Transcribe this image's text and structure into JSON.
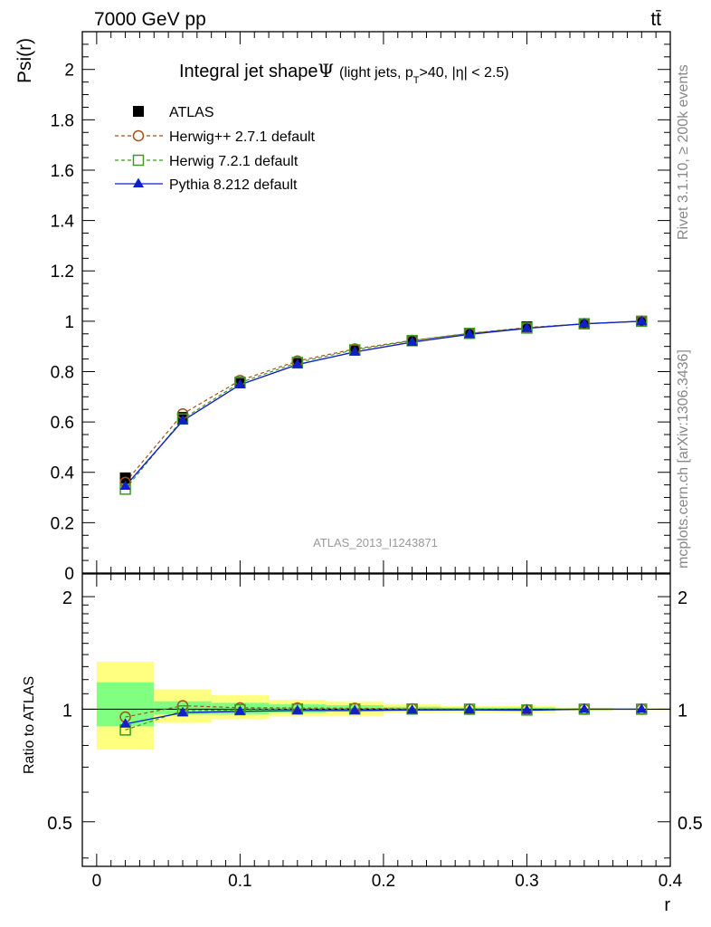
{
  "header": {
    "left_label": "7000 GeV pp",
    "right_label": "tt̄"
  },
  "side_labels": {
    "rivet": "Rivet 3.1.10, ≥ 200k events",
    "source": "mcplots.cern.ch [arXiv:1306.3436]"
  },
  "chart_data": [
    {
      "type": "line",
      "panel": "main",
      "title_main": "Integral jet shape",
      "title_symbol": "Ψ",
      "title_detail": "(light jets, p",
      "title_sub": "T",
      "title_tail": ">40, |η| < 2.5)",
      "ylabel": "Psi(r)",
      "xlabel": "r",
      "watermark": "ATLAS_2013_I1243871",
      "xlim": [
        -0.01,
        0.4
      ],
      "ylim": [
        0,
        2.15
      ],
      "yticks": [
        0,
        0.2,
        0.4,
        0.6,
        0.8,
        1,
        1.2,
        1.4,
        1.6,
        1.8,
        2
      ],
      "ytick_labels": [
        "0",
        "0.2",
        "0.4",
        "0.6",
        "0.8",
        "1",
        "1.2",
        "1.4",
        "1.6",
        "1.8",
        "2"
      ],
      "xticks": [
        0,
        0.1,
        0.2,
        0.3,
        0.4
      ],
      "xtick_labels": [
        "0",
        "0.1",
        "0.2",
        "0.3",
        "0.4"
      ],
      "x": [
        0.02,
        0.06,
        0.1,
        0.14,
        0.18,
        0.22,
        0.26,
        0.3,
        0.34,
        0.38
      ],
      "series": [
        {
          "name": "ATLAS",
          "color": "#000000",
          "marker": "square-filled",
          "line": "none",
          "values": [
            0.378,
            0.618,
            0.758,
            0.835,
            0.885,
            0.922,
            0.952,
            0.978,
            0.99,
            1.0
          ]
        },
        {
          "name": "Herwig++ 2.7.1 default",
          "color": "#a0521a",
          "marker": "circle-open",
          "line": "dashed",
          "values": [
            0.36,
            0.632,
            0.765,
            0.842,
            0.89,
            0.924,
            0.952,
            0.975,
            0.99,
            1.0
          ]
        },
        {
          "name": "Herwig 7.2.1 default",
          "color": "#3f9a1f",
          "marker": "square-open",
          "line": "dashed",
          "values": [
            0.333,
            0.612,
            0.756,
            0.836,
            0.886,
            0.923,
            0.952,
            0.973,
            0.99,
            1.0
          ]
        },
        {
          "name": "Pythia 8.212 default",
          "color": "#0f20c8",
          "marker": "triangle-filled",
          "line": "solid",
          "values": [
            0.345,
            0.605,
            0.748,
            0.828,
            0.878,
            0.917,
            0.948,
            0.972,
            0.99,
            1.0
          ]
        }
      ]
    },
    {
      "type": "line",
      "panel": "ratio",
      "ylabel": "Ratio to ATLAS",
      "xlabel": "r",
      "xlim": [
        -0.01,
        0.4
      ],
      "ylim": [
        0.38,
        2.3
      ],
      "yticks": [
        0.5,
        1,
        2
      ],
      "ytick_labels": [
        "0.5",
        "1",
        "2"
      ],
      "xticks": [
        0,
        0.1,
        0.2,
        0.3,
        0.4
      ],
      "xtick_labels": [
        "0",
        "0.1",
        "0.2",
        "0.3",
        "0.4"
      ],
      "x": [
        0.02,
        0.06,
        0.1,
        0.14,
        0.18,
        0.22,
        0.26,
        0.3,
        0.34,
        0.38
      ],
      "bin_edges": [
        0,
        0.04,
        0.08,
        0.12,
        0.16,
        0.2,
        0.24,
        0.28,
        0.32,
        0.36,
        0.4
      ],
      "band_yellow": [
        [
          0.78,
          1.34
        ],
        [
          0.92,
          1.13
        ],
        [
          0.94,
          1.09
        ],
        [
          0.96,
          1.06
        ],
        [
          0.96,
          1.05
        ],
        [
          0.98,
          1.03
        ],
        [
          0.98,
          1.02
        ],
        [
          0.98,
          1.02
        ],
        [
          0.99,
          1.01
        ],
        [
          0.995,
          1.005
        ]
      ],
      "band_green": [
        [
          0.9,
          1.18
        ],
        [
          0.97,
          1.05
        ],
        [
          0.97,
          1.04
        ],
        [
          0.98,
          1.03
        ],
        [
          0.985,
          1.025
        ],
        [
          0.99,
          1.015
        ],
        [
          0.99,
          1.01
        ],
        [
          0.99,
          1.01
        ],
        [
          0.995,
          1.005
        ],
        [
          0.997,
          1.003
        ]
      ],
      "band_yellow_color": "#ffff80",
      "band_green_color": "#80ff80",
      "series": [
        {
          "name": "Herwig++ 2.7.1 default",
          "color": "#a0521a",
          "marker": "circle-open",
          "line": "dashed",
          "values": [
            0.953,
            1.022,
            1.009,
            1.008,
            1.006,
            1.002,
            1.0,
            0.997,
            1.0,
            1.0
          ]
        },
        {
          "name": "Herwig 7.2.1 default",
          "color": "#3f9a1f",
          "marker": "square-open",
          "line": "dashed",
          "values": [
            0.88,
            0.99,
            0.997,
            1.001,
            1.001,
            1.001,
            1.0,
            0.995,
            1.0,
            1.0
          ]
        },
        {
          "name": "Pythia 8.212 default",
          "color": "#0f20c8",
          "marker": "triangle-filled",
          "line": "solid",
          "values": [
            0.913,
            0.979,
            0.987,
            0.992,
            0.992,
            0.995,
            0.996,
            0.994,
            1.0,
            1.0
          ]
        }
      ]
    }
  ]
}
